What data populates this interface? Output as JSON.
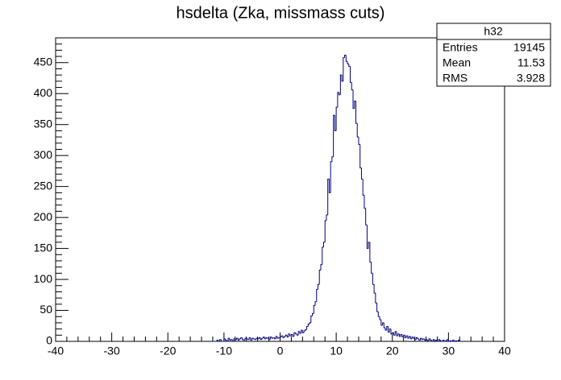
{
  "chart_data": {
    "type": "histogram",
    "title": "hsdelta (Zka, missmass cuts)",
    "color": "#000080",
    "xlim": [
      -40,
      40
    ],
    "ylim": [
      0,
      490
    ],
    "xticks": [
      -40,
      -30,
      -20,
      -10,
      0,
      10,
      20,
      30,
      40
    ],
    "yticks": [
      0,
      50,
      100,
      150,
      200,
      250,
      300,
      350,
      400,
      450
    ],
    "stats": {
      "title": "h32",
      "rows": [
        {
          "label": "Entries",
          "value": 19145
        },
        {
          "label": "Mean",
          "value": 11.53
        },
        {
          "label": "RMS",
          "value": 3.928
        }
      ]
    },
    "bins": [
      -12,
      -11.75,
      -11.5,
      -11.25,
      -11,
      -10.75,
      -10.5,
      -10.25,
      -10,
      -9.75,
      -9.5,
      -9.25,
      -9,
      -8.75,
      -8.5,
      -8.25,
      -8,
      -7.75,
      -7.5,
      -7.25,
      -7,
      -6.75,
      -6.5,
      -6.25,
      -6,
      -5.75,
      -5.5,
      -5.25,
      -5,
      -4.75,
      -4.5,
      -4.25,
      -4,
      -3.75,
      -3.5,
      -3.25,
      -3,
      -2.75,
      -2.5,
      -2.25,
      -2,
      -1.75,
      -1.5,
      -1.25,
      -1,
      -0.75,
      -0.5,
      -0.25,
      0,
      0.25,
      0.5,
      0.75,
      1,
      1.25,
      1.5,
      1.75,
      2,
      2.25,
      2.5,
      2.75,
      3,
      3.25,
      3.5,
      3.75,
      4,
      4.25,
      4.5,
      4.75,
      5,
      5.25,
      5.5,
      5.75,
      6,
      6.25,
      6.5,
      6.75,
      7,
      7.25,
      7.5,
      7.75,
      8,
      8.25,
      8.5,
      8.75,
      9,
      9.25,
      9.5,
      9.75,
      10,
      10.25,
      10.5,
      10.75,
      11,
      11.25,
      11.5,
      11.75,
      12,
      12.25,
      12.5,
      12.75,
      13,
      13.25,
      13.5,
      13.75,
      14,
      14.25,
      14.5,
      14.75,
      15,
      15.25,
      15.5,
      15.75,
      16,
      16.25,
      16.5,
      16.75,
      17,
      17.25,
      17.5,
      17.75,
      18,
      18.25,
      18.5,
      18.75,
      19,
      19.25,
      19.5,
      19.75,
      20,
      20.25,
      20.5,
      20.75,
      21,
      21.25,
      21.5,
      21.75,
      22,
      22.25,
      22.5,
      22.75,
      23,
      23.25,
      23.5,
      23.75,
      24,
      24.25,
      24.5,
      24.75,
      25,
      25.25,
      25.5,
      25.75,
      26,
      26.25,
      26.5,
      26.75,
      27,
      27.25,
      27.5,
      27.75,
      28,
      28.25,
      28.5,
      28.75,
      29,
      29.25,
      29.5,
      29.75,
      30,
      30.25,
      30.5,
      30.75,
      31,
      31.25,
      31.5,
      31.75,
      32
    ],
    "values": [
      0,
      0,
      0,
      2,
      0,
      3,
      0,
      0,
      4,
      2,
      0,
      5,
      2,
      3,
      0,
      4,
      3,
      5,
      2,
      4,
      6,
      3,
      2,
      5,
      4,
      3,
      6,
      2,
      5,
      4,
      3,
      5,
      4,
      6,
      3,
      5,
      7,
      4,
      6,
      5,
      3,
      7,
      5,
      6,
      4,
      8,
      5,
      6,
      7,
      9,
      6,
      8,
      10,
      7,
      12,
      9,
      11,
      8,
      14,
      12,
      10,
      16,
      13,
      18,
      14,
      17,
      19,
      24,
      28,
      30,
      41,
      45,
      58,
      64,
      84,
      92,
      115,
      124,
      152,
      160,
      195,
      204,
      262,
      240,
      290,
      298,
      365,
      340,
      378,
      402,
      398,
      430,
      420,
      458,
      462,
      452,
      448,
      444,
      418,
      406,
      376,
      388,
      352,
      330,
      318,
      280,
      262,
      236,
      215,
      188,
      150,
      160,
      128,
      110,
      92,
      78,
      62,
      48,
      40,
      35,
      26,
      30,
      22,
      18,
      24,
      15,
      20,
      12,
      14,
      10,
      16,
      9,
      12,
      8,
      11,
      7,
      10,
      6,
      9,
      5,
      8,
      4,
      7,
      5,
      3,
      6,
      4,
      2,
      5,
      3,
      4,
      2,
      3,
      1,
      4,
      2,
      0,
      3,
      1,
      2,
      0,
      3,
      1,
      0,
      2,
      0,
      1,
      3,
      0,
      1,
      0,
      2,
      0,
      1,
      0,
      2
    ]
  }
}
